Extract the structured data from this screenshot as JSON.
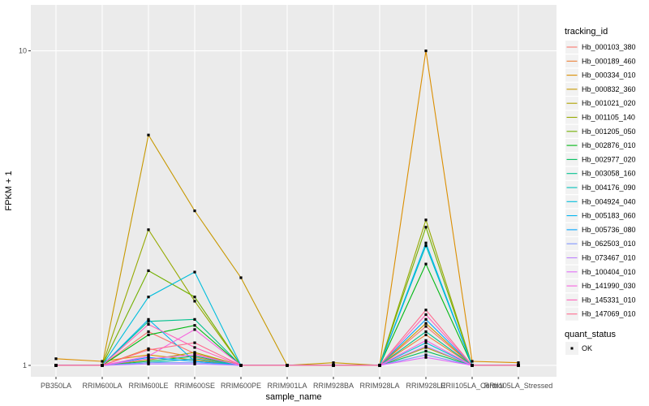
{
  "chart_data": {
    "type": "line",
    "xlabel": "sample_name",
    "ylabel": "FPKM + 1",
    "y_scale": "log10",
    "ylim": [
      0.92,
      14
    ],
    "y_ticks": [
      1,
      10
    ],
    "y_tick_labels": [
      "1",
      "10"
    ],
    "grid": true,
    "legend_placement": "right",
    "categories": [
      "PB350LA",
      "RRIM600LA",
      "RRIM600LE",
      "RRIM600SE",
      "RRIM600PE",
      "RRIM901LA",
      "RRIM928BA",
      "RRIM928LA",
      "RRIM928LE",
      "RRII105LA_Control",
      "RRII105LA_Stressed"
    ],
    "series": [
      {
        "name": "Hb_000103_380",
        "color": "#F8766D",
        "values": [
          1.0,
          1.0,
          1.28,
          1.09,
          1.0,
          1.0,
          1.0,
          1.0,
          1.33,
          1.0,
          1.0
        ]
      },
      {
        "name": "Hb_000189_460",
        "color": "#EC8239",
        "values": [
          1.0,
          1.0,
          1.13,
          1.06,
          1.0,
          1.0,
          1.0,
          1.0,
          1.25,
          1.0,
          1.0
        ]
      },
      {
        "name": "Hb_000334_010",
        "color": "#DB8E00",
        "values": [
          1.05,
          1.03,
          1.08,
          1.04,
          1.0,
          1.0,
          1.0,
          1.0,
          10.0,
          1.03,
          1.02
        ]
      },
      {
        "name": "Hb_000832_360",
        "color": "#C79800",
        "values": [
          1.0,
          1.0,
          5.4,
          3.1,
          1.9,
          1.0,
          1.02,
          1.0,
          1.36,
          1.0,
          1.0
        ]
      },
      {
        "name": "Hb_001021_020",
        "color": "#AFA100",
        "values": [
          1.0,
          1.0,
          1.04,
          1.1,
          1.0,
          1.0,
          1.0,
          1.0,
          1.14,
          1.0,
          1.0
        ]
      },
      {
        "name": "Hb_001105_140",
        "color": "#96A900",
        "values": [
          1.0,
          1.0,
          2.7,
          1.6,
          1.0,
          1.0,
          1.0,
          1.0,
          2.9,
          1.0,
          1.0
        ]
      },
      {
        "name": "Hb_001205_050",
        "color": "#72B000",
        "values": [
          1.0,
          1.0,
          2.0,
          1.65,
          1.0,
          1.0,
          1.0,
          1.0,
          2.75,
          1.0,
          1.0
        ]
      },
      {
        "name": "Hb_002876_010",
        "color": "#00B813",
        "values": [
          1.0,
          1.0,
          1.25,
          1.34,
          1.0,
          1.0,
          1.0,
          1.0,
          2.1,
          1.0,
          1.0
        ]
      },
      {
        "name": "Hb_002977_020",
        "color": "#00BD5C",
        "values": [
          1.0,
          1.0,
          1.03,
          1.07,
          1.0,
          1.0,
          1.0,
          1.0,
          1.11,
          1.0,
          1.0
        ]
      },
      {
        "name": "Hb_003058_160",
        "color": "#00C08E",
        "values": [
          1.0,
          1.0,
          1.38,
          1.4,
          1.0,
          1.0,
          1.0,
          1.0,
          1.28,
          1.0,
          1.0
        ]
      },
      {
        "name": "Hb_004176_090",
        "color": "#00C0B8",
        "values": [
          1.0,
          1.0,
          1.02,
          1.05,
          1.0,
          1.0,
          1.0,
          1.0,
          2.4,
          1.0,
          1.0
        ]
      },
      {
        "name": "Hb_004924_040",
        "color": "#00BDDC",
        "values": [
          1.0,
          1.0,
          1.65,
          1.98,
          1.0,
          1.0,
          1.0,
          1.0,
          1.18,
          1.0,
          1.0
        ]
      },
      {
        "name": "Hb_005183_060",
        "color": "#00B4F0",
        "values": [
          1.0,
          1.0,
          1.4,
          1.03,
          1.0,
          1.0,
          1.0,
          1.0,
          2.45,
          1.0,
          1.0
        ]
      },
      {
        "name": "Hb_005736_080",
        "color": "#00A5FF",
        "values": [
          1.0,
          1.0,
          1.06,
          1.03,
          1.0,
          1.0,
          1.0,
          1.0,
          1.4,
          1.0,
          1.0
        ]
      },
      {
        "name": "Hb_062503_010",
        "color": "#7F96FF",
        "values": [
          1.0,
          1.0,
          1.02,
          1.02,
          1.0,
          1.0,
          1.0,
          1.0,
          1.08,
          1.0,
          1.0
        ]
      },
      {
        "name": "Hb_073467_010",
        "color": "#BC81FF",
        "values": [
          1.0,
          1.0,
          1.01,
          1.01,
          1.0,
          1.0,
          1.0,
          1.0,
          1.15,
          1.0,
          1.0
        ]
      },
      {
        "name": "Hb_100404_010",
        "color": "#E26EF7",
        "values": [
          1.0,
          1.0,
          1.05,
          1.08,
          1.0,
          1.0,
          1.0,
          1.0,
          1.06,
          1.0,
          1.0
        ]
      },
      {
        "name": "Hb_141990_030",
        "color": "#F763DF",
        "values": [
          1.0,
          1.0,
          1.07,
          1.3,
          1.0,
          1.0,
          1.0,
          1.0,
          1.2,
          1.0,
          1.0
        ]
      },
      {
        "name": "Hb_145331_010",
        "color": "#FF62BC",
        "values": [
          1.0,
          1.0,
          1.35,
          1.14,
          1.0,
          1.0,
          1.0,
          1.0,
          1.45,
          1.0,
          1.0
        ]
      },
      {
        "name": "Hb_147069_010",
        "color": "#FF6C90",
        "values": [
          1.0,
          1.0,
          1.12,
          1.18,
          1.0,
          1.0,
          1.0,
          1.0,
          1.5,
          1.0,
          1.0
        ]
      }
    ],
    "point_color": "#000000"
  },
  "legend": {
    "title": "tracking_id",
    "quant_title": "quant_status",
    "quant_label": "OK"
  },
  "style": {
    "panel_bg": "#EBEBEB",
    "grid_color": "#FFFFFF"
  }
}
